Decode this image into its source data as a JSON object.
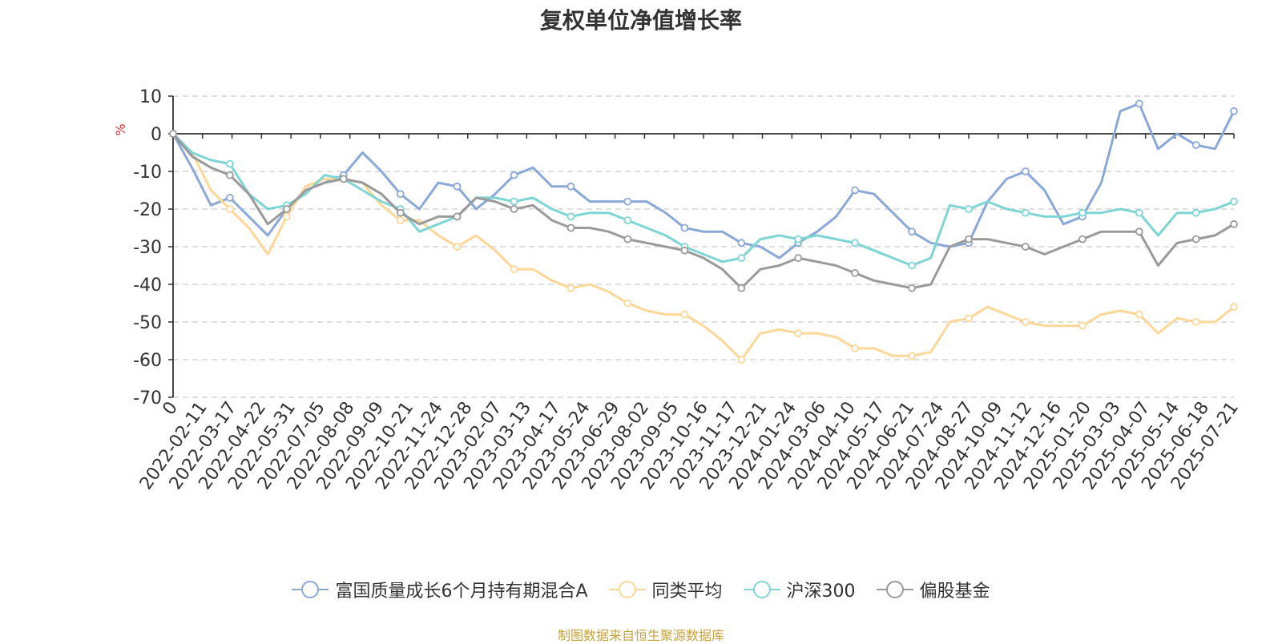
{
  "chart_data": {
    "type": "line",
    "title": "复权单位净值增长率",
    "ylabel": "%",
    "xlabel": "",
    "ylim": [
      -70,
      10
    ],
    "yticks": [
      10,
      0,
      -10,
      -20,
      -30,
      -40,
      -50,
      -60,
      -70
    ],
    "x_tick_labels": [
      "0",
      "2022-02-11",
      "2022-03-17",
      "2022-04-22",
      "2022-05-31",
      "2022-07-05",
      "2022-08-08",
      "2022-09-09",
      "2022-10-21",
      "2022-11-24",
      "2022-12-28",
      "2023-02-07",
      "2023-03-13",
      "2023-04-17",
      "2023-05-24",
      "2023-06-29",
      "2023-08-02",
      "2023-09-05",
      "2023-10-16",
      "2023-11-17",
      "2023-12-21",
      "2024-01-24",
      "2024-03-06",
      "2024-04-10",
      "2024-05-17",
      "2024-06-21",
      "2024-07-24",
      "2024-08-27",
      "2024-10-09",
      "2024-11-12",
      "2024-12-16",
      "2025-01-20",
      "2025-03-03",
      "2025-04-07",
      "2025-05-14",
      "2025-06-18",
      "2025-07-21"
    ],
    "grid": true,
    "legend_position": "bottom",
    "series": [
      {
        "name": "富国质量成长6个月持有期混合A",
        "color": "#8aa8d8",
        "values": [
          0,
          -9,
          -19,
          -17,
          -22,
          -27,
          -20,
          -15,
          -13,
          -11,
          -5,
          -10,
          -16,
          -20,
          -13,
          -14,
          -20,
          -16,
          -11,
          -9,
          -14,
          -14,
          -18,
          -18,
          -18,
          -18,
          -21,
          -25,
          -26,
          -26,
          -29,
          -30,
          -33,
          -29,
          -26,
          -22,
          -15,
          -16,
          -21,
          -26,
          -29,
          -30,
          -29,
          -18,
          -12,
          -10,
          -15,
          -24,
          -22,
          -13,
          6,
          8,
          -4,
          0,
          -3,
          -4,
          6
        ]
      },
      {
        "name": "同类平均",
        "color": "#fcd798",
        "values": [
          0,
          -5,
          -15,
          -20,
          -25,
          -32,
          -22,
          -14,
          -12,
          -12,
          -13,
          -19,
          -23,
          -23,
          -27,
          -30,
          -27,
          -31,
          -36,
          -36,
          -39,
          -41,
          -40,
          -42,
          -45,
          -47,
          -48,
          -48,
          -51,
          -55,
          -60,
          -53,
          -52,
          -53,
          -53,
          -54,
          -57,
          -57,
          -59,
          -59,
          -58,
          -50,
          -49,
          -46,
          -48,
          -50,
          -51,
          -51,
          -51,
          -48,
          -47,
          -48,
          -53,
          -49,
          -50,
          -50,
          -46
        ]
      },
      {
        "name": "沪深300",
        "color": "#7fd4d4",
        "values": [
          0,
          -5,
          -7,
          -8,
          -16,
          -20,
          -19,
          -16,
          -11,
          -12,
          -15,
          -18,
          -20,
          -26,
          -24,
          -22,
          -17,
          -17,
          -18,
          -17,
          -20,
          -22,
          -21,
          -21,
          -23,
          -25,
          -27,
          -30,
          -32,
          -34,
          -33,
          -28,
          -27,
          -28,
          -27,
          -28,
          -29,
          -31,
          -33,
          -35,
          -33,
          -19,
          -20,
          -18,
          -20,
          -21,
          -22,
          -22,
          -21,
          -21,
          -20,
          -21,
          -27,
          -21,
          -21,
          -20,
          -18
        ]
      },
      {
        "name": "偏股基金",
        "color": "#9a9a9a",
        "values": [
          0,
          -6,
          -9,
          -11,
          -16,
          -24,
          -20,
          -15,
          -13,
          -12,
          -13,
          -16,
          -21,
          -24,
          -22,
          -22,
          -17,
          -18,
          -20,
          -19,
          -23,
          -25,
          -25,
          -26,
          -28,
          -29,
          -30,
          -31,
          -33,
          -36,
          -41,
          -36,
          -35,
          -33,
          -34,
          -35,
          -37,
          -39,
          -40,
          -41,
          -40,
          -30,
          -28,
          -28,
          -29,
          -30,
          -32,
          -30,
          -28,
          -26,
          -26,
          -26,
          -35,
          -29,
          -28,
          -27,
          -24
        ]
      }
    ]
  },
  "source_note": "制图数据来自恒生聚源数据库"
}
